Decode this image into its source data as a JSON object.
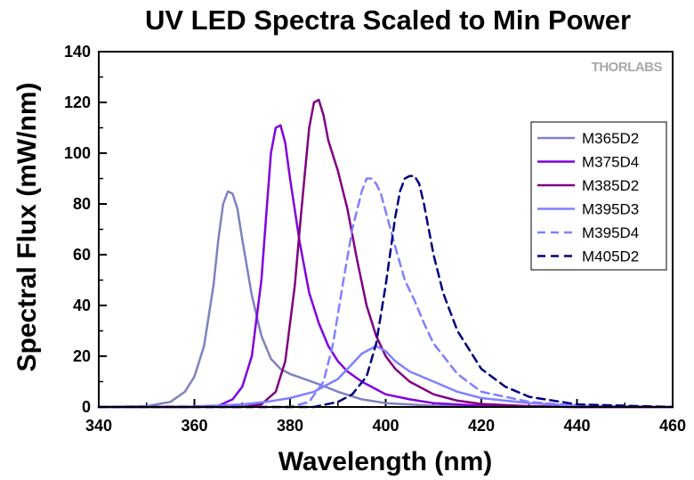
{
  "chart_data": {
    "type": "line",
    "title": "UV LED Spectra Scaled to Min Power",
    "xlabel": "Wavelength (nm)",
    "ylabel": "Spectral Flux (mW/nm)",
    "xlim": [
      340,
      460
    ],
    "ylim": [
      0,
      140
    ],
    "xticks": [
      340,
      360,
      380,
      400,
      420,
      440,
      460
    ],
    "yticks": [
      0,
      20,
      40,
      60,
      80,
      100,
      120,
      140
    ],
    "grid": false,
    "legend_position": "right",
    "brand_logo": "THORLABS",
    "series": [
      {
        "name": "M365D2",
        "color": "#8080c0",
        "dash": "solid",
        "x": [
          340,
          350,
          355,
          358,
          360,
          362,
          364,
          365,
          366,
          367,
          368,
          369,
          370,
          372,
          374,
          376,
          378,
          380,
          383,
          386,
          390,
          395,
          400,
          410,
          420,
          440,
          460
        ],
        "y": [
          0,
          0.3,
          2,
          6,
          12,
          24,
          48,
          66,
          80,
          85,
          84,
          78,
          66,
          44,
          28,
          19,
          15,
          13,
          11,
          9,
          6,
          3,
          1.5,
          0.5,
          0.2,
          0,
          0
        ]
      },
      {
        "name": "M375D4",
        "color": "#8000e0",
        "dash": "solid",
        "x": [
          340,
          360,
          365,
          368,
          370,
          372,
          374,
          375,
          376,
          377,
          378,
          379,
          380,
          382,
          384,
          386,
          388,
          390,
          392,
          395,
          400,
          405,
          410,
          420,
          440,
          460
        ],
        "y": [
          0,
          0,
          0.5,
          3,
          8,
          20,
          50,
          75,
          100,
          110,
          111,
          104,
          90,
          65,
          45,
          33,
          24,
          18,
          14,
          10,
          5,
          3,
          1.5,
          0.5,
          0,
          0
        ]
      },
      {
        "name": "M385D2",
        "color": "#800080",
        "dash": "solid",
        "x": [
          340,
          370,
          374,
          377,
          379,
          381,
          382,
          383,
          384,
          385,
          386,
          387,
          388,
          390,
          392,
          394,
          396,
          398,
          400,
          402,
          405,
          410,
          415,
          420,
          430,
          440,
          460
        ],
        "y": [
          0,
          0,
          1,
          6,
          18,
          48,
          70,
          90,
          110,
          120,
          121,
          115,
          105,
          93,
          78,
          58,
          40,
          28,
          20,
          15,
          10,
          5,
          2.5,
          1.2,
          0.3,
          0,
          0
        ]
      },
      {
        "name": "M395D3",
        "color": "#8080ff",
        "dash": "solid",
        "x": [
          340,
          360,
          370,
          375,
          380,
          385,
          390,
          393,
          395,
          397,
          398,
          400,
          402,
          405,
          410,
          415,
          420,
          430,
          440,
          460
        ],
        "y": [
          0,
          0.2,
          1,
          2,
          3.5,
          6,
          11,
          17,
          21,
          23,
          24,
          22,
          18,
          14,
          10,
          6,
          3.5,
          1.5,
          0.5,
          0
        ]
      },
      {
        "name": "M395D4",
        "color": "#8080ff",
        "dash": "dashed",
        "x": [
          340,
          380,
          384,
          387,
          389,
          391,
          393,
          395,
          396,
          397,
          398,
          399,
          400,
          402,
          404,
          406,
          408,
          410,
          415,
          420,
          430,
          440,
          460
        ],
        "y": [
          0,
          0,
          2,
          10,
          25,
          48,
          70,
          85,
          90,
          90,
          88,
          84,
          77,
          63,
          50,
          42,
          33,
          25,
          13,
          6,
          2,
          0.5,
          0
        ]
      },
      {
        "name": "M405D2",
        "color": "#000080",
        "dash": "dashed",
        "x": [
          340,
          385,
          390,
          393,
          396,
          398,
          400,
          402,
          403,
          404,
          405,
          406,
          407,
          408,
          410,
          412,
          415,
          420,
          425,
          430,
          440,
          460
        ],
        "y": [
          0,
          0,
          2,
          5,
          12,
          25,
          48,
          75,
          85,
          90,
          91,
          91,
          88,
          80,
          60,
          45,
          30,
          15,
          8,
          4,
          1,
          0
        ]
      }
    ]
  }
}
